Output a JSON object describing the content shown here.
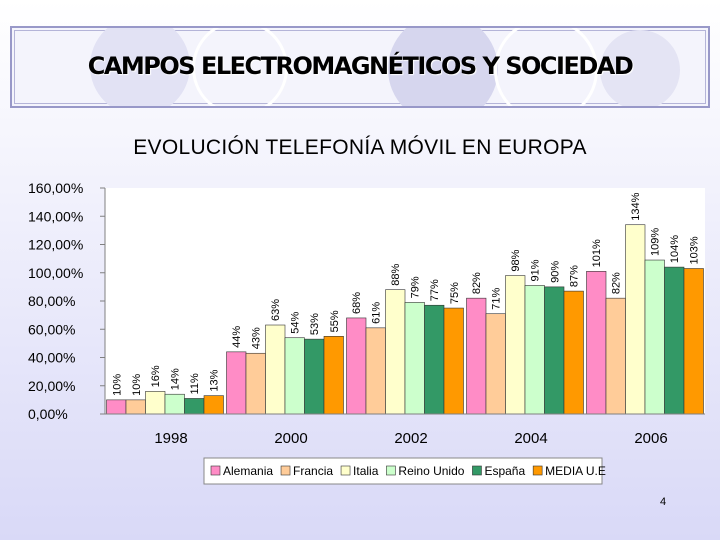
{
  "banner": {
    "title": "CAMPOS ELECTROMAGNÉTICOS Y SOCIEDAD"
  },
  "slide": {
    "title": "EVOLUCIÓN TELEFONÍA MÓVIL EN EUROPA",
    "page_number": "4"
  },
  "chart_data": {
    "type": "bar",
    "title": "EVOLUCIÓN TELEFONÍA MÓVIL EN EUROPA",
    "categories": [
      "1998",
      "2000",
      "2002",
      "2004",
      "2006"
    ],
    "ylim": [
      0,
      160
    ],
    "yticks": [
      "0,00%",
      "20,00%",
      "40,00%",
      "60,00%",
      "80,00%",
      "100,00%",
      "120,00%",
      "140,00%",
      "160,00%"
    ],
    "xlabel": "",
    "ylabel": "",
    "legend_position": "bottom",
    "grid": false,
    "series": [
      {
        "name": "Alemania",
        "color": "#ff8cc6",
        "values": [
          10,
          44,
          68,
          82,
          101
        ],
        "labels": [
          "10%",
          "44%",
          "68%",
          "82%",
          "101%"
        ]
      },
      {
        "name": "Francia",
        "color": "#ffcc99",
        "values": [
          10,
          43,
          61,
          71,
          82
        ],
        "labels": [
          "10%",
          "43%",
          "61%",
          "71%",
          "82%"
        ]
      },
      {
        "name": "Italia",
        "color": "#ffffcc",
        "values": [
          16,
          63,
          88,
          98,
          134
        ],
        "labels": [
          "16%",
          "63%",
          "88%",
          "98%",
          "134%"
        ]
      },
      {
        "name": "Reino Unido",
        "color": "#ccffcc",
        "values": [
          14,
          54,
          79,
          91,
          109
        ],
        "labels": [
          "14%",
          "54%",
          "79%",
          "91%",
          "109%"
        ]
      },
      {
        "name": "España",
        "color": "#339966",
        "values": [
          11,
          53,
          77,
          90,
          104
        ],
        "labels": [
          "11%",
          "53%",
          "77%",
          "90%",
          "104%"
        ]
      },
      {
        "name": "MEDIA U.E",
        "color": "#ff9900",
        "values": [
          13,
          55,
          75,
          87,
          103
        ],
        "labels": [
          "13%",
          "55%",
          "75%",
          "87%",
          "103%"
        ]
      }
    ]
  }
}
